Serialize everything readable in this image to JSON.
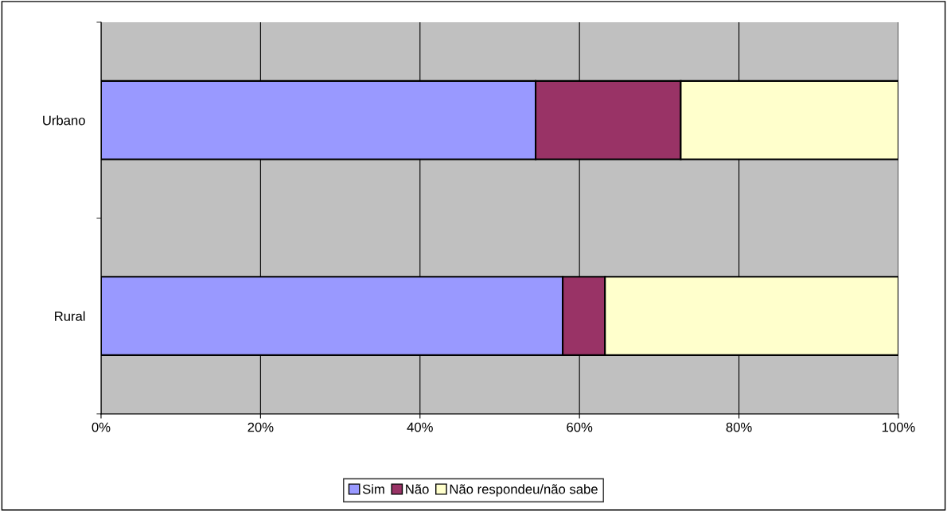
{
  "chart_data": {
    "type": "bar",
    "orientation": "horizontal",
    "stacked": true,
    "categories": [
      "Urbano",
      "Rural"
    ],
    "series": [
      {
        "name": "Sim",
        "color": "#9999ff",
        "values": [
          54.5,
          57.9
        ]
      },
      {
        "name": "Não",
        "color": "#993366",
        "values": [
          18.2,
          5.3
        ]
      },
      {
        "name": "Não respondeu/não sabe",
        "color": "#ffffcc",
        "values": [
          27.3,
          36.8
        ]
      }
    ],
    "xlim": [
      0,
      100
    ],
    "xticks": [
      {
        "value": 0,
        "label": "0%"
      },
      {
        "value": 20,
        "label": "20%"
      },
      {
        "value": 40,
        "label": "40%"
      },
      {
        "value": 60,
        "label": "60%"
      },
      {
        "value": 80,
        "label": "80%"
      },
      {
        "value": 100,
        "label": "100%"
      }
    ],
    "grid": "x",
    "legend": "bottom"
  }
}
